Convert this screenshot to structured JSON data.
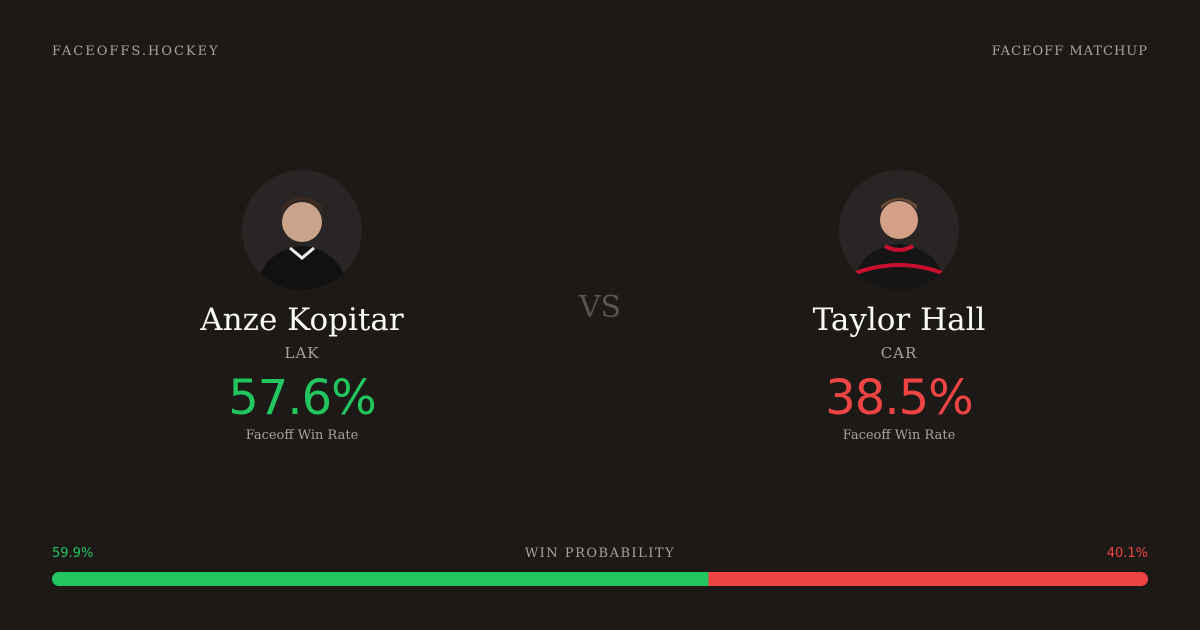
{
  "header": {
    "brand": "FACEOFFS.HOCKEY",
    "label": "FACEOFF MATCHUP"
  },
  "vs": "VS",
  "players": [
    {
      "name": "Anze Kopitar",
      "team": "LAK",
      "win_rate": "57.6%",
      "win_rate_label": "Faceoff Win Rate",
      "color": "#22c55e"
    },
    {
      "name": "Taylor Hall",
      "team": "CAR",
      "win_rate": "38.5%",
      "win_rate_label": "Faceoff Win Rate",
      "color": "#ef4444"
    }
  ],
  "win_probability": {
    "label": "WIN PROBABILITY",
    "values": [
      59.9,
      40.1
    ],
    "value_labels": [
      "59.9%",
      "40.1%"
    ],
    "colors": [
      "#22c55e",
      "#ef4444"
    ]
  }
}
